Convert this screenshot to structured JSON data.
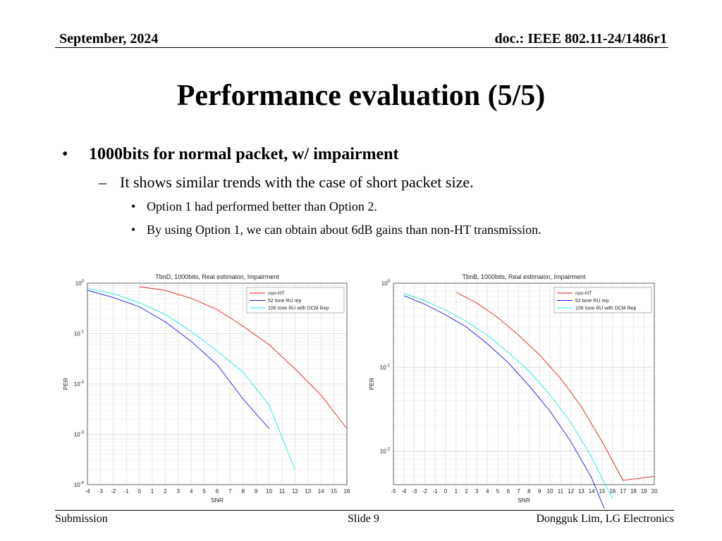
{
  "header": {
    "date": "September, 2024",
    "doc": "doc.: IEEE 802.11-24/1486r1"
  },
  "title": "Performance evaluation (5/5)",
  "bullets": {
    "level1": "1000bits for normal packet, w/ impairment",
    "level2": "It shows similar trends with the case of short packet size.",
    "level3": [
      "Option 1 had performed better than Option 2.",
      "By using Option 1, we can obtain about 6dB gains than non-HT transmission."
    ]
  },
  "footer": {
    "left": "Submission",
    "center": "Slide 9",
    "right": "Dongguk Lim, LG Electronics"
  },
  "chart_data": [
    {
      "type": "line",
      "title": "TbnD, 1000bits, Real estimaion, Impairment",
      "xlabel": "SNR",
      "ylabel": "PER",
      "xlim": [
        -4,
        16
      ],
      "xticks": [
        -4,
        -3,
        -2,
        -1,
        0,
        1,
        2,
        3,
        4,
        5,
        6,
        7,
        8,
        9,
        10,
        11,
        12,
        13,
        14,
        15,
        16
      ],
      "ylim": [
        0.0001,
        1
      ],
      "yscale": "log",
      "ytick_labels": [
        "10^0",
        "10^-1",
        "10^-2",
        "10^-3",
        "10^-4"
      ],
      "grid": true,
      "legend_position": "top-right",
      "series": [
        {
          "name": "non-HT",
          "color": "#e8191a",
          "x": [
            0,
            2,
            4,
            6,
            8,
            10,
            12,
            14,
            16
          ],
          "y": [
            0.85,
            0.72,
            0.5,
            0.3,
            0.14,
            0.06,
            0.02,
            0.006,
            0.0013
          ]
        },
        {
          "name": "52 tone RU rep",
          "color": "#1a1ae6",
          "x": [
            -4,
            -2,
            0,
            2,
            4,
            6,
            8,
            10
          ],
          "y": [
            0.72,
            0.52,
            0.34,
            0.17,
            0.07,
            0.024,
            0.005,
            0.0013
          ]
        },
        {
          "name": "106 tone RU with DCM Rep",
          "color": "#22e6e6",
          "x": [
            -4,
            -2,
            0,
            2,
            4,
            6,
            8,
            10,
            12
          ],
          "y": [
            0.78,
            0.62,
            0.41,
            0.24,
            0.11,
            0.045,
            0.017,
            0.0038,
            0.0002
          ]
        }
      ]
    },
    {
      "type": "line",
      "title": "TbnB, 1000bits, Real estimaion, Impairment",
      "xlabel": "SNR",
      "ylabel": "PER",
      "xlim": [
        -5,
        20
      ],
      "xticks": [
        -5,
        -4,
        -3,
        -2,
        -1,
        0,
        1,
        2,
        3,
        4,
        5,
        6,
        7,
        8,
        9,
        10,
        11,
        12,
        13,
        14,
        15,
        16,
        17,
        18,
        19,
        20
      ],
      "ylim": [
        0.004,
        1
      ],
      "yscale": "log",
      "ytick_labels": [
        "10^0",
        "10^-1",
        "10^-2"
      ],
      "grid": true,
      "legend_position": "top-right",
      "series": [
        {
          "name": "non-HT",
          "color": "#e8191a",
          "x": [
            1,
            3,
            5,
            7,
            9,
            11,
            13,
            15,
            17,
            20
          ],
          "y": [
            0.78,
            0.58,
            0.39,
            0.24,
            0.14,
            0.074,
            0.034,
            0.013,
            0.0045,
            0.005
          ]
        },
        {
          "name": "52 tone RU rep",
          "color": "#1a1ae6",
          "x": [
            -4,
            -2,
            0,
            2,
            4,
            6,
            8,
            10,
            12,
            14,
            16
          ],
          "y": [
            0.71,
            0.56,
            0.42,
            0.3,
            0.19,
            0.113,
            0.06,
            0.03,
            0.013,
            0.0048,
            0.0012
          ]
        },
        {
          "name": "106 tone RU with DCM Rep",
          "color": "#22e6e6",
          "x": [
            -4,
            -2,
            0,
            2,
            4,
            6,
            8,
            10,
            12,
            14,
            16
          ],
          "y": [
            0.76,
            0.62,
            0.48,
            0.35,
            0.24,
            0.15,
            0.09,
            0.047,
            0.022,
            0.0085,
            0.0027
          ]
        }
      ]
    }
  ]
}
